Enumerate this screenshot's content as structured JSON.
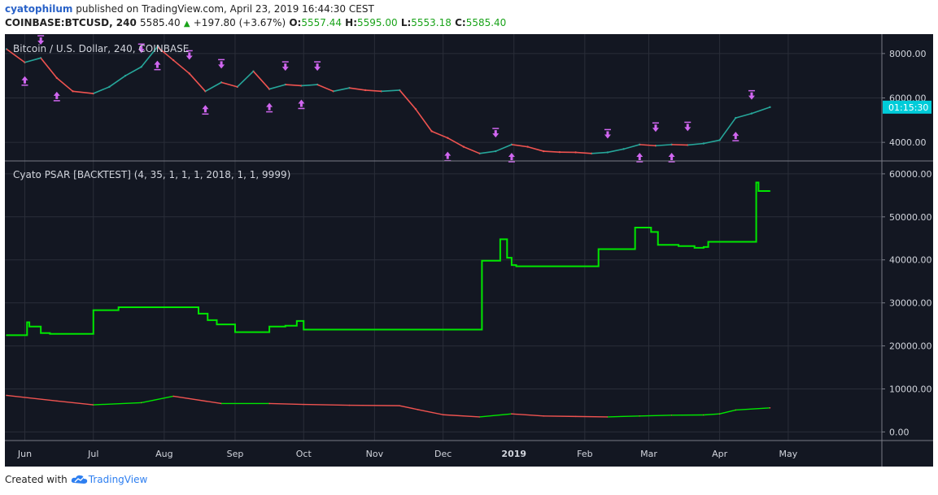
{
  "header": {
    "author": "cyatophilum",
    "published_text": "published on TradingView.com, April 23, 2019 16:44:30 CEST",
    "symbol": "COINBASE:BTCUSD, 240",
    "last_price": "5585.40",
    "change_arrow": "▲",
    "change": "+197.80 (+3.67%)",
    "open_label": "O:",
    "open": "5557.44",
    "high_label": "H:",
    "high": "5595.00",
    "low_label": "L:",
    "low": "5553.18",
    "close_label": "C:",
    "close": "5585.40"
  },
  "footer": {
    "created_with": "Created with",
    "brand": "TradingView"
  },
  "colors": {
    "background": "#131722",
    "grid": "#2a2e39",
    "text": "#d1d4dc",
    "up": "#26a69a",
    "down": "#ef5350",
    "psar_line": "#00e600",
    "arrow": "#d066f0",
    "price_badge": "#00ccd9",
    "sep": "#787b86"
  },
  "chart_data": [
    {
      "type": "line",
      "title": "Bitcoin / U.S. Dollar, 240, COINBASE",
      "y_ticks": [
        4000,
        6000,
        8000
      ],
      "y_tick_labels": [
        "4000.00",
        "6000.00",
        "8000.00"
      ],
      "ylim": [
        3200,
        8800
      ],
      "current_price_label": "01:15:30",
      "series": [
        {
          "name": "",
          "x": [
            "2019-05-24",
            "2019-06-01",
            "2019-06-08",
            "2019-06-15",
            "2019-06-22",
            "2019-07-01",
            "2019-07-08",
            "2019-07-15",
            "2019-07-22",
            "2019-07-29",
            "2019-08-05",
            "2019-08-12",
            "2019-08-19",
            "2019-08-26",
            "2019-09-02",
            "2019-09-09",
            "2019-09-16",
            "2019-09-23",
            "2019-09-30",
            "2019-10-07",
            "2019-10-14",
            "2019-10-21",
            "2019-10-28",
            "2019-11-04",
            "2019-11-12",
            "2019-11-19",
            "2019-11-26",
            "2019-12-03",
            "2019-12-10",
            "2019-12-17",
            "2019-12-24",
            "2019-12-31",
            "2019-01-07",
            "2019-01-14",
            "2019-01-21",
            "2019-01-28",
            "2019-02-04",
            "2019-02-11",
            "2019-02-18",
            "2019-02-25",
            "2019-03-04",
            "2019-03-11",
            "2019-03-18",
            "2019-03-25",
            "2019-04-01",
            "2019-04-08",
            "2019-04-15",
            "2019-04-23"
          ],
          "values": [
            8200,
            7600,
            7800,
            6900,
            6300,
            6200,
            6500,
            7000,
            7400,
            8300,
            7700,
            7100,
            6300,
            6700,
            6500,
            7200,
            6400,
            6600,
            6550,
            6600,
            6300,
            6450,
            6350,
            6300,
            6350,
            5500,
            4500,
            4200,
            3800,
            3500,
            3600,
            3900,
            3800,
            3600,
            3560,
            3550,
            3500,
            3550,
            3700,
            3900,
            3850,
            3900,
            3880,
            3950,
            4100,
            5100,
            5300,
            5585
          ]
        }
      ],
      "markers": "strategy entry/exit arrows (magenta)"
    },
    {
      "type": "line",
      "title": "Cyato PSAR [BACKTEST] (4, 35, 1, 1, 1, 2018, 1, 1, 9999)",
      "y_ticks": [
        0,
        10000,
        20000,
        30000,
        40000,
        50000,
        60000
      ],
      "y_tick_labels": [
        "0.00",
        "10000.00",
        "20000.00",
        "30000.00",
        "40000.00",
        "50000.00",
        "60000.00"
      ],
      "ylim": [
        -2000,
        63000
      ],
      "series": [
        {
          "name": "",
          "x": [
            "2019-05-24",
            "2019-06-02",
            "2019-06-03",
            "2019-06-08",
            "2019-06-12",
            "2019-07-01",
            "2019-07-12",
            "2019-08-12",
            "2019-08-16",
            "2019-08-20",
            "2019-08-24",
            "2019-09-01",
            "2019-09-16",
            "2019-09-23",
            "2019-09-28",
            "2019-10-01",
            "2019-12-18",
            "2019-12-26",
            "2019-12-29",
            "2019-12-31",
            "2019-01-02",
            "2019-02-07",
            "2019-02-21",
            "2019-02-23",
            "2019-03-02",
            "2019-03-05",
            "2019-03-14",
            "2019-03-21",
            "2019-03-25",
            "2019-03-27",
            "2019-04-15",
            "2019-04-17",
            "2019-04-18",
            "2019-04-23"
          ],
          "values": [
            22500,
            25500,
            24500,
            23000,
            22800,
            28300,
            29000,
            29000,
            27500,
            26000,
            25000,
            23200,
            24500,
            24700,
            25800,
            23800,
            39800,
            44800,
            40500,
            38800,
            38500,
            42500,
            42500,
            47500,
            46500,
            43500,
            43200,
            42800,
            43000,
            44200,
            44200,
            58000,
            56000,
            56000
          ]
        },
        {
          "name": "",
          "x": [
            "2019-05-24",
            "2019-06-15",
            "2019-07-01",
            "2019-07-22",
            "2019-08-05",
            "2019-08-26",
            "2019-09-16",
            "2019-10-01",
            "2019-10-21",
            "2019-11-12",
            "2019-11-20",
            "2019-12-01",
            "2019-12-17",
            "2019-12-31",
            "2019-01-14",
            "2019-01-28",
            "2019-02-11",
            "2019-02-25",
            "2019-03-11",
            "2019-03-25",
            "2019-04-01",
            "2019-04-08",
            "2019-04-23"
          ],
          "values": [
            8500,
            7200,
            6300,
            6800,
            8300,
            6600,
            6600,
            6400,
            6200,
            6100,
            5200,
            4000,
            3500,
            4200,
            3700,
            3600,
            3500,
            3700,
            3900,
            3950,
            4200,
            5100,
            5600
          ]
        }
      ]
    }
  ],
  "x_axis_labels": [
    "Jun",
    "Jul",
    "Aug",
    "Sep",
    "Oct",
    "Nov",
    "Dec",
    "2019",
    "Feb",
    "Mar",
    "Apr",
    "May"
  ]
}
